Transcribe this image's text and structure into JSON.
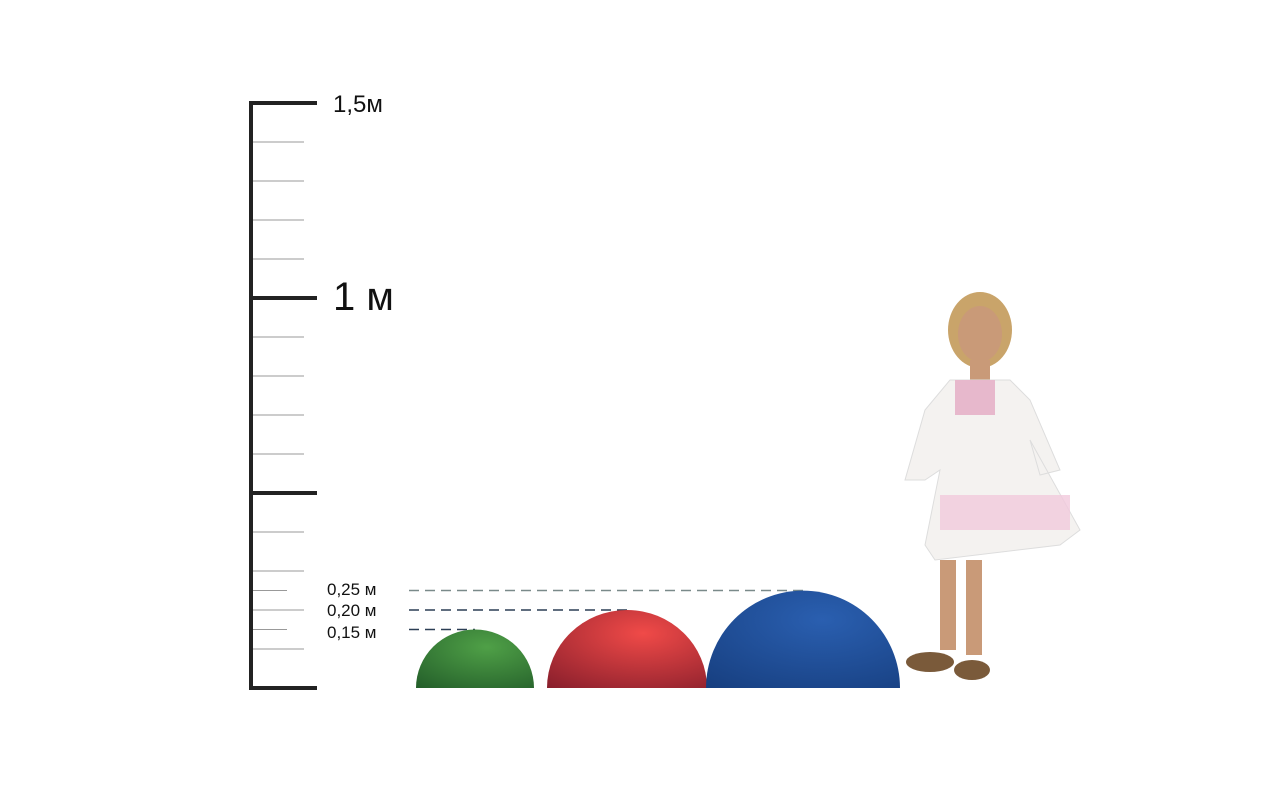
{
  "scale": {
    "labels": {
      "top": "1,5м",
      "one_meter": "1 м"
    },
    "heights": [
      {
        "label": "0,25 м",
        "value_m": 0.25
      },
      {
        "label": "0,20 м",
        "value_m": 0.2
      },
      {
        "label": "0,15 м",
        "value_m": 0.15
      }
    ]
  },
  "domes": [
    {
      "name": "green",
      "height_m": 0.15,
      "color": "#3f8a3a"
    },
    {
      "name": "red",
      "height_m": 0.2,
      "color": "#d9393d"
    },
    {
      "name": "blue",
      "height_m": 0.25,
      "color": "#1f4f98"
    }
  ]
}
